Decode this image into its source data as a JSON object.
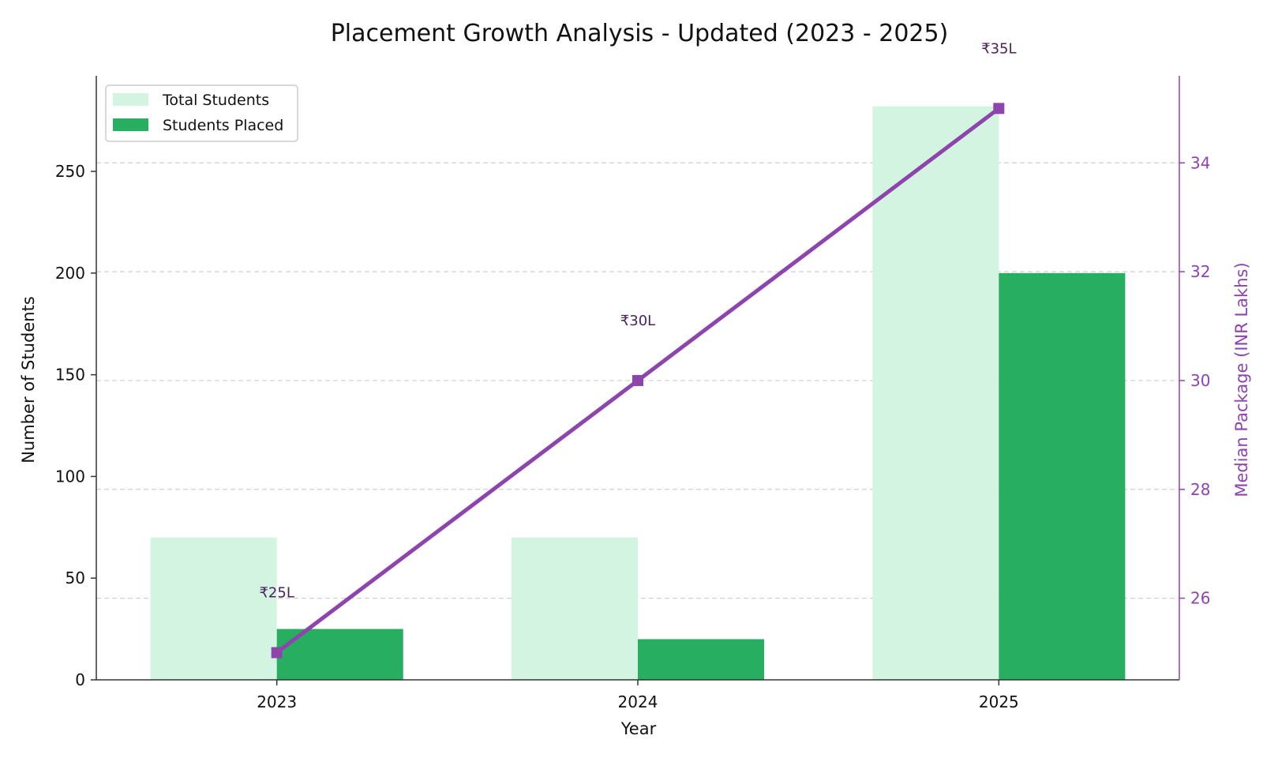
{
  "chart_data": {
    "type": "bar",
    "title": "Placement Growth Analysis - Updated (2023 - 2025)",
    "xlabel": "Year",
    "ylabel": "Number of Students",
    "ylabel_right": "Median Package (INR Lakhs)",
    "categories": [
      "2023",
      "2024",
      "2025"
    ],
    "ylim": [
      0,
      297
    ],
    "y_ticks": [
      0,
      50,
      100,
      150,
      200,
      250
    ],
    "y2lim": [
      24.5,
      35.6
    ],
    "y2_ticks": [
      26,
      28,
      30,
      32,
      34
    ],
    "grid": "horizontal dashed",
    "legend_position": "top-left",
    "series": [
      {
        "name": "Total Students",
        "type": "bar",
        "values": [
          70,
          70,
          282
        ],
        "color": "#d4f4e2"
      },
      {
        "name": "Students Placed",
        "type": "bar",
        "values": [
          25,
          20,
          200
        ],
        "color": "#27ae60"
      },
      {
        "type": "line",
        "axis": "right",
        "values": [
          25,
          30,
          35
        ],
        "color": "#8e44ad",
        "marker": "square",
        "labels": [
          "₹25L",
          "₹30L",
          "₹35L"
        ]
      }
    ]
  }
}
